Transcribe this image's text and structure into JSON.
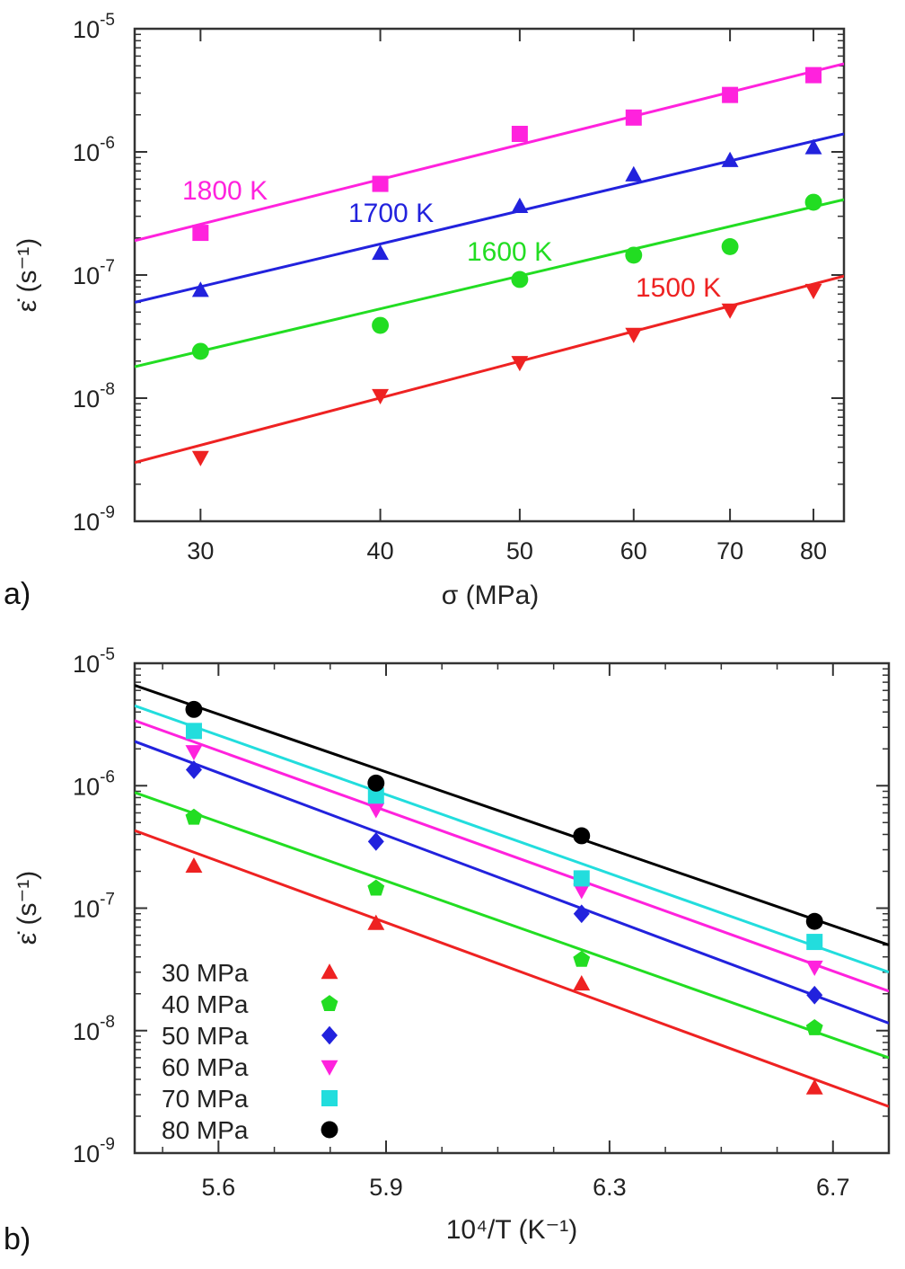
{
  "chart_data": [
    {
      "type": "scatter",
      "panel_label": "a)",
      "title": "",
      "xlabel": "σ (MPa)",
      "ylabel": "ε̇ (s⁻¹)",
      "xscale": "log",
      "yscale": "log",
      "xlim": [
        27,
        84
      ],
      "ylim": [
        1e-09,
        1e-05
      ],
      "x_ticks": [
        30,
        40,
        50,
        60,
        70,
        80
      ],
      "x_tick_labels": [
        "30",
        "40",
        "50",
        "60",
        "70",
        "80"
      ],
      "y_ticks": [
        {
          "value": 1e-05,
          "mantissa": "10",
          "exp": "-5"
        },
        {
          "value": 1e-06,
          "mantissa": "10",
          "exp": "-6"
        },
        {
          "value": 1e-07,
          "mantissa": "10",
          "exp": "-7"
        },
        {
          "value": 1e-08,
          "mantissa": "10",
          "exp": "-8"
        },
        {
          "value": 1e-09,
          "mantissa": "10",
          "exp": "-9"
        }
      ],
      "legend": "none",
      "series": [
        {
          "name": "1800 K",
          "color": "#ff22dd",
          "marker": "square",
          "x": [
            30,
            40,
            50,
            60,
            70,
            80
          ],
          "y": [
            2.2e-07,
            5.5e-07,
            1.4e-06,
            1.9e-06,
            2.9e-06,
            4.2e-06
          ],
          "fit": [
            [
              27,
              1.9e-07
            ],
            [
              84,
              5.2e-06
            ]
          ]
        },
        {
          "name": "1700 K",
          "color": "#2222dd",
          "marker": "triangle-up",
          "x": [
            30,
            40,
            50,
            60,
            70,
            80
          ],
          "y": [
            7.5e-08,
            1.5e-07,
            3.6e-07,
            6.5e-07,
            8.5e-07,
            1.08e-06
          ],
          "fit": [
            [
              27,
              6e-08
            ],
            [
              84,
              1.4e-06
            ]
          ]
        },
        {
          "name": "1600 K",
          "color": "#22dd22",
          "marker": "circle",
          "x": [
            30,
            40,
            50,
            60,
            70,
            80
          ],
          "y": [
            2.4e-08,
            3.9e-08,
            9.2e-08,
            1.45e-07,
            1.7e-07,
            3.9e-07
          ],
          "fit": [
            [
              27,
              1.8e-08
            ],
            [
              84,
              4.1e-07
            ]
          ]
        },
        {
          "name": "1500 K",
          "color": "#ee2222",
          "marker": "triangle-down",
          "x": [
            30,
            40,
            50,
            60,
            70,
            80
          ],
          "y": [
            3.3e-09,
            1.05e-08,
            1.95e-08,
            3.3e-08,
            5.2e-08,
            7.5e-08
          ],
          "fit": [
            [
              27,
              3e-09
            ],
            [
              84,
              9.8e-08
            ]
          ]
        }
      ]
    },
    {
      "type": "scatter",
      "panel_label": "b)",
      "title": "",
      "xlabel": "10⁴/T (K⁻¹)",
      "ylabel": "ε̇ (s⁻¹)",
      "xscale": "linear",
      "yscale": "log",
      "xlim": [
        5.45,
        6.8
      ],
      "ylim": [
        1e-09,
        1e-05
      ],
      "x_ticks": [
        5.6,
        5.9,
        6.3,
        6.7
      ],
      "x_tick_labels": [
        "5.6",
        "5.9",
        "6.3",
        "6.7"
      ],
      "y_ticks": [
        {
          "value": 1e-05,
          "mantissa": "10",
          "exp": "-5"
        },
        {
          "value": 1e-06,
          "mantissa": "10",
          "exp": "-6"
        },
        {
          "value": 1e-07,
          "mantissa": "10",
          "exp": "-7"
        },
        {
          "value": 1e-08,
          "mantissa": "10",
          "exp": "-8"
        },
        {
          "value": 1e-09,
          "mantissa": "10",
          "exp": "-9"
        }
      ],
      "legend": "bottom-left",
      "series": [
        {
          "name": "30 MPa",
          "color": "#ee2222",
          "marker": "triangle-up",
          "x": [
            5.556,
            5.882,
            6.25,
            6.667
          ],
          "y": [
            2.2e-07,
            7.5e-08,
            2.4e-08,
            3.4e-09
          ],
          "fit": [
            [
              5.45,
              4.3e-07
            ],
            [
              6.8,
              2.4e-09
            ]
          ]
        },
        {
          "name": "40 MPa",
          "color": "#22dd22",
          "marker": "pentagon",
          "x": [
            5.556,
            5.882,
            6.25,
            6.667
          ],
          "y": [
            5.5e-07,
            1.45e-07,
            3.8e-08,
            1.05e-08
          ],
          "fit": [
            [
              5.45,
              8.8e-07
            ],
            [
              6.8,
              6e-09
            ]
          ]
        },
        {
          "name": "50 MPa",
          "color": "#2222dd",
          "marker": "diamond",
          "x": [
            5.556,
            5.882,
            6.25,
            6.667
          ],
          "y": [
            1.35e-06,
            3.5e-07,
            9e-08,
            1.95e-08
          ],
          "fit": [
            [
              5.45,
              2.3e-06
            ],
            [
              6.8,
              1.15e-08
            ]
          ]
        },
        {
          "name": "60 MPa",
          "color": "#ff22dd",
          "marker": "triangle-down",
          "x": [
            5.556,
            5.882,
            6.25,
            6.667
          ],
          "y": [
            1.9e-06,
            6.4e-07,
            1.4e-07,
            3.3e-08
          ],
          "fit": [
            [
              5.45,
              3.4e-06
            ],
            [
              6.8,
              2.1e-08
            ]
          ]
        },
        {
          "name": "70 MPa",
          "color": "#22dddd",
          "marker": "square",
          "x": [
            5.556,
            5.882,
            6.25,
            6.667
          ],
          "y": [
            2.8e-06,
            8.3e-07,
            1.75e-07,
            5.3e-08
          ],
          "fit": [
            [
              5.45,
              4.5e-06
            ],
            [
              6.8,
              3e-08
            ]
          ]
        },
        {
          "name": "80 MPa",
          "color": "#000000",
          "marker": "circle",
          "x": [
            5.556,
            5.882,
            6.25,
            6.667
          ],
          "y": [
            4.2e-06,
            1.05e-06,
            3.9e-07,
            7.8e-08
          ],
          "fit": [
            [
              5.45,
              6.6e-06
            ],
            [
              6.8,
              5e-08
            ]
          ]
        }
      ]
    }
  ]
}
